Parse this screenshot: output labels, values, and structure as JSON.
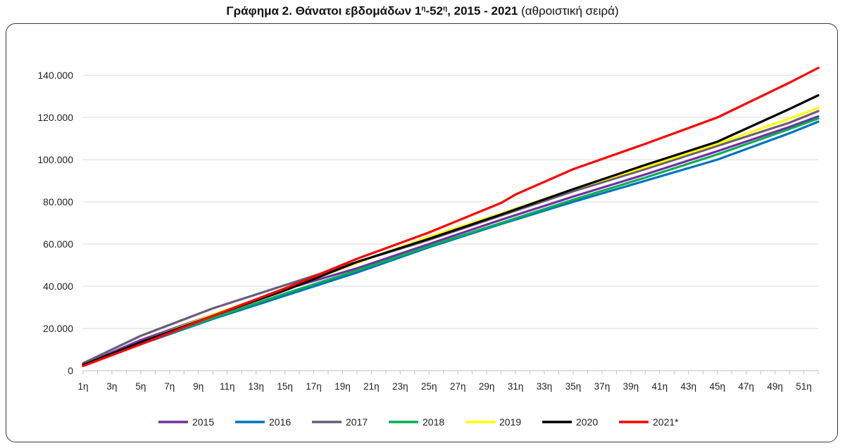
{
  "title": {
    "main_bold": "Γράφημα 2. Θάνατοι εβδομάδων 1",
    "sup1": "η",
    "dash": "-52",
    "sup2": "η",
    "years": ", 2015 - 2021",
    "suffix": " (αθροιστική σειρά)"
  },
  "chart_data": {
    "type": "line",
    "title": "Γράφημα 2. Θάνατοι εβδομάδων 1η-52η, 2015 - 2021 (αθροιστική σειρά)",
    "xlabel": "",
    "ylabel": "",
    "ylim": [
      0,
      140000
    ],
    "y_ticks": [
      0,
      20000,
      40000,
      60000,
      80000,
      100000,
      120000,
      140000
    ],
    "y_tick_labels": [
      "0",
      "20.000",
      "40.000",
      "60.000",
      "80.000",
      "100.000",
      "120.000",
      "140.000"
    ],
    "x_tick_labels": [
      "1η",
      "3η",
      "5η",
      "7η",
      "9η",
      "11η",
      "13η",
      "15η",
      "17η",
      "19η",
      "21η",
      "23η",
      "25η",
      "27η",
      "29η",
      "31η",
      "33η",
      "35η",
      "37η",
      "39η",
      "41η",
      "43η",
      "45η",
      "47η",
      "49η",
      "51η"
    ],
    "grid": true,
    "legend_position": "bottom",
    "series": [
      {
        "name": "2015",
        "color": "#7030A0",
        "x": [
          1,
          5,
          10,
          15,
          20,
          25,
          30,
          35,
          40,
          45,
          50,
          52
        ],
        "y": [
          2800,
          14500,
          26500,
          38500,
          48500,
          60000,
          71500,
          82500,
          93000,
          104000,
          115500,
          120500
        ]
      },
      {
        "name": "2016",
        "color": "#0070C0",
        "x": [
          1,
          5,
          10,
          15,
          20,
          25,
          30,
          35,
          40,
          45,
          50,
          52
        ],
        "y": [
          2600,
          12500,
          24500,
          35500,
          46500,
          58500,
          69500,
          80000,
          90000,
          100000,
          112500,
          118000
        ]
      },
      {
        "name": "2017",
        "color": "#6B5B7B",
        "x": [
          1,
          5,
          10,
          15,
          20,
          25,
          30,
          35,
          40,
          45,
          50,
          52
        ],
        "y": [
          3500,
          16500,
          29500,
          40500,
          51500,
          62000,
          73500,
          85000,
          95500,
          106500,
          117500,
          123000
        ]
      },
      {
        "name": "2018",
        "color": "#00B050",
        "x": [
          1,
          5,
          10,
          15,
          20,
          25,
          30,
          35,
          40,
          45,
          50,
          52
        ],
        "y": [
          2700,
          13000,
          25000,
          36500,
          47500,
          59000,
          70000,
          81000,
          91500,
          102500,
          114500,
          119500
        ]
      },
      {
        "name": "2019",
        "color": "#FFFF00",
        "x": [
          1,
          5,
          10,
          15,
          20,
          25,
          30,
          35,
          40,
          45,
          50,
          52
        ],
        "y": [
          2700,
          13500,
          26500,
          38500,
          51000,
          63500,
          74500,
          86000,
          96500,
          107500,
          119500,
          124500
        ]
      },
      {
        "name": "2020",
        "color": "#000000",
        "x": [
          1,
          5,
          10,
          15,
          20,
          25,
          30,
          35,
          40,
          45,
          50,
          52
        ],
        "y": [
          2700,
          13500,
          26000,
          38000,
          51500,
          62500,
          74000,
          86000,
          97500,
          108500,
          124000,
          130500
        ]
      },
      {
        "name": "2021*",
        "color": "#FF0000",
        "x": [
          1,
          5,
          10,
          15,
          20,
          25,
          30,
          31,
          35,
          40,
          45,
          50,
          52
        ],
        "y": [
          2200,
          12500,
          26000,
          39000,
          53000,
          65500,
          79500,
          83500,
          95500,
          107500,
          120000,
          136500,
          143500
        ]
      }
    ]
  }
}
